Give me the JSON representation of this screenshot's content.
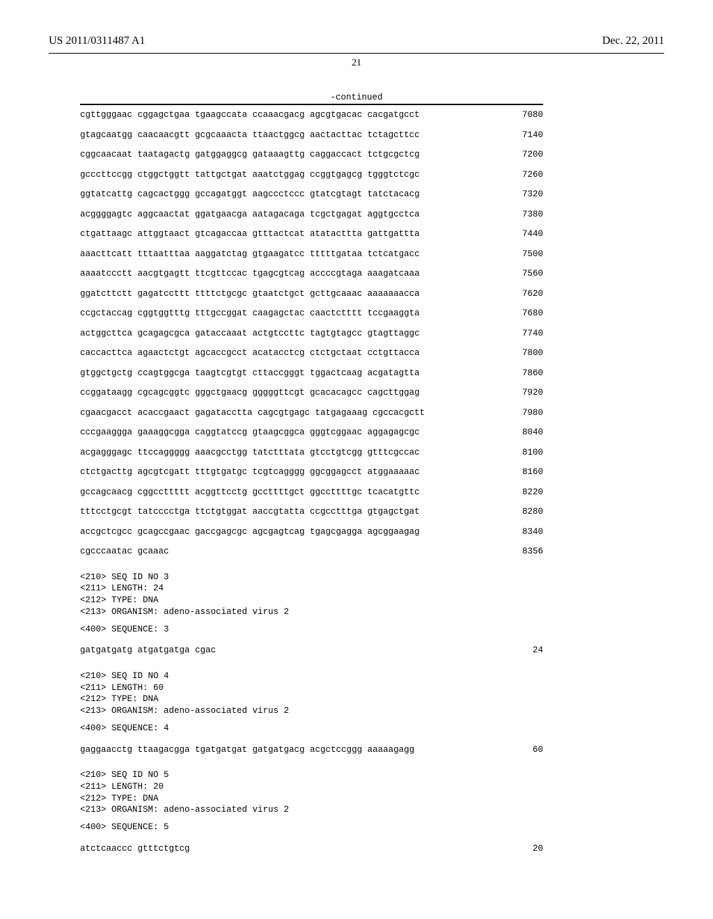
{
  "header": {
    "left": "US 2011/0311487 A1",
    "right": "Dec. 22, 2011",
    "page_number": "21",
    "continued_label": "-continued"
  },
  "sequence_rows": [
    {
      "seq": "cgttgggaac cggagctgaa tgaagccata ccaaacgacg agcgtgacac cacgatgcct",
      "pos": "7080"
    },
    {
      "seq": "gtagcaatgg caacaacgtt gcgcaaacta ttaactggcg aactacttac tctagcttcc",
      "pos": "7140"
    },
    {
      "seq": "cggcaacaat taatagactg gatggaggcg gataaagttg caggaccact tctgcgctcg",
      "pos": "7200"
    },
    {
      "seq": "gcccttccgg ctggctggtt tattgctgat aaatctggag ccggtgagcg tgggtctcgc",
      "pos": "7260"
    },
    {
      "seq": "ggtatcattg cagcactggg gccagatggt aagccctccc gtatcgtagt tatctacacg",
      "pos": "7320"
    },
    {
      "seq": "acggggagtc aggcaactat ggatgaacga aatagacaga tcgctgagat aggtgcctca",
      "pos": "7380"
    },
    {
      "seq": "ctgattaagc attggtaact gtcagaccaa gtttactcat atatacttta gattgattta",
      "pos": "7440"
    },
    {
      "seq": "aaacttcatt tttaatttaa aaggatctag gtgaagatcc tttttgataa tctcatgacc",
      "pos": "7500"
    },
    {
      "seq": "aaaatccctt aacgtgagtt ttcgttccac tgagcgtcag accccgtaga aaagatcaaa",
      "pos": "7560"
    },
    {
      "seq": "ggatcttctt gagatccttt ttttctgcgc gtaatctgct gcttgcaaac aaaaaaacca",
      "pos": "7620"
    },
    {
      "seq": "ccgctaccag cggtggtttg tttgccggat caagagctac caactctttt tccgaaggta",
      "pos": "7680"
    },
    {
      "seq": "actggcttca gcagagcgca gataccaaat actgtccttc tagtgtagcc gtagttaggc",
      "pos": "7740"
    },
    {
      "seq": "caccacttca agaactctgt agcaccgcct acatacctcg ctctgctaat cctgttacca",
      "pos": "7800"
    },
    {
      "seq": "gtggctgctg ccagtggcga taagtcgtgt cttaccgggt tggactcaag acgatagtta",
      "pos": "7860"
    },
    {
      "seq": "ccggataagg cgcagcggtc gggctgaacg gggggttcgt gcacacagcc cagcttggag",
      "pos": "7920"
    },
    {
      "seq": "cgaacgacct acaccgaact gagatacctta cagcgtgagc tatgagaaag cgccacgctt",
      "pos": "7980"
    },
    {
      "seq": "cccgaaggga gaaaggcgga caggtatccg gtaagcggca gggtcggaac aggagagcgc",
      "pos": "8040"
    },
    {
      "seq": "acgagggagc ttccaggggg aaacgcctgg tatctttata gtcctgtcgg gtttcgccac",
      "pos": "8100"
    },
    {
      "seq": "ctctgacttg agcgtcgatt tttgtgatgc tcgtcagggg ggcggagcct atggaaaaac",
      "pos": "8160"
    },
    {
      "seq": "gccagcaacg cggccttttt acggttcctg gccttttgct ggccttttgc tcacatgttc",
      "pos": "8220"
    },
    {
      "seq": "tttcctgcgt tatcccctga ttctgtggat aaccgtatta ccgcctttga gtgagctgat",
      "pos": "8280"
    },
    {
      "seq": "accgctcgcc gcagccgaac gaccgagcgc agcgagtcag tgagcgagga agcggaagag",
      "pos": "8340"
    },
    {
      "seq": "cgcccaatac gcaaac",
      "pos": "8356"
    }
  ],
  "entries": [
    {
      "meta": [
        "<210> SEQ ID NO 3",
        "<211> LENGTH: 24",
        "<212> TYPE: DNA",
        "<213> ORGANISM: adeno-associated virus 2"
      ],
      "seq_label": "<400> SEQUENCE: 3",
      "rows": [
        {
          "seq": "gatgatgatg atgatgatga cgac",
          "pos": "24"
        }
      ]
    },
    {
      "meta": [
        "<210> SEQ ID NO 4",
        "<211> LENGTH: 60",
        "<212> TYPE: DNA",
        "<213> ORGANISM: adeno-associated virus 2"
      ],
      "seq_label": "<400> SEQUENCE: 4",
      "rows": [
        {
          "seq": "gaggaacctg ttaagacgga tgatgatgat gatgatgacg acgctccggg aaaaagagg",
          "pos": "60"
        }
      ]
    },
    {
      "meta": [
        "<210> SEQ ID NO 5",
        "<211> LENGTH: 20",
        "<212> TYPE: DNA",
        "<213> ORGANISM: adeno-associated virus 2"
      ],
      "seq_label": "<400> SEQUENCE: 5",
      "rows": [
        {
          "seq": "atctcaaccc gtttctgtcg",
          "pos": "20"
        }
      ]
    }
  ]
}
